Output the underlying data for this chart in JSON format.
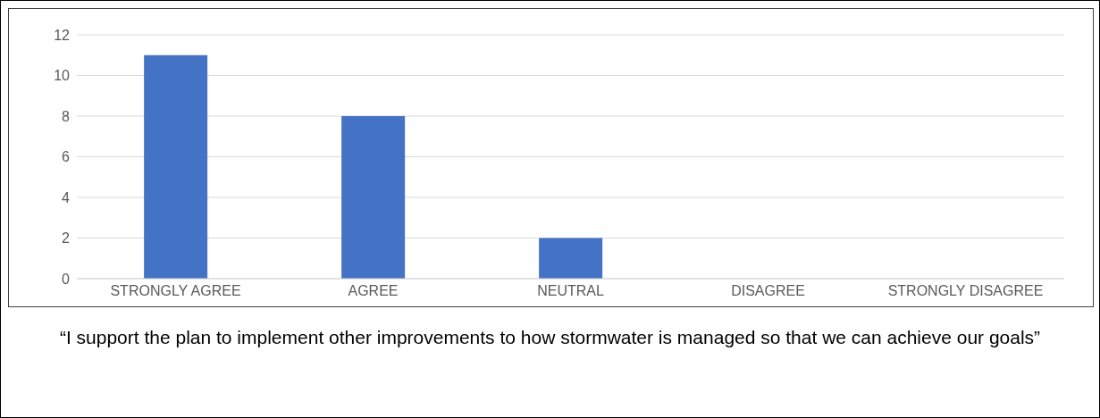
{
  "chart_data": {
    "type": "bar",
    "title": "“I support the plan to implement other improvements to how stormwater is managed so that we can achieve our goals”",
    "categories": [
      "STRONGLY AGREE",
      "AGREE",
      "NEUTRAL",
      "DISAGREE",
      "STRONGLY DISAGREE"
    ],
    "values": [
      11,
      8,
      2,
      0,
      0
    ],
    "color": "#4472c4",
    "ylim": [
      0,
      12
    ],
    "yticks": [
      0,
      2,
      4,
      6,
      8,
      10,
      12
    ],
    "grid": "y"
  }
}
